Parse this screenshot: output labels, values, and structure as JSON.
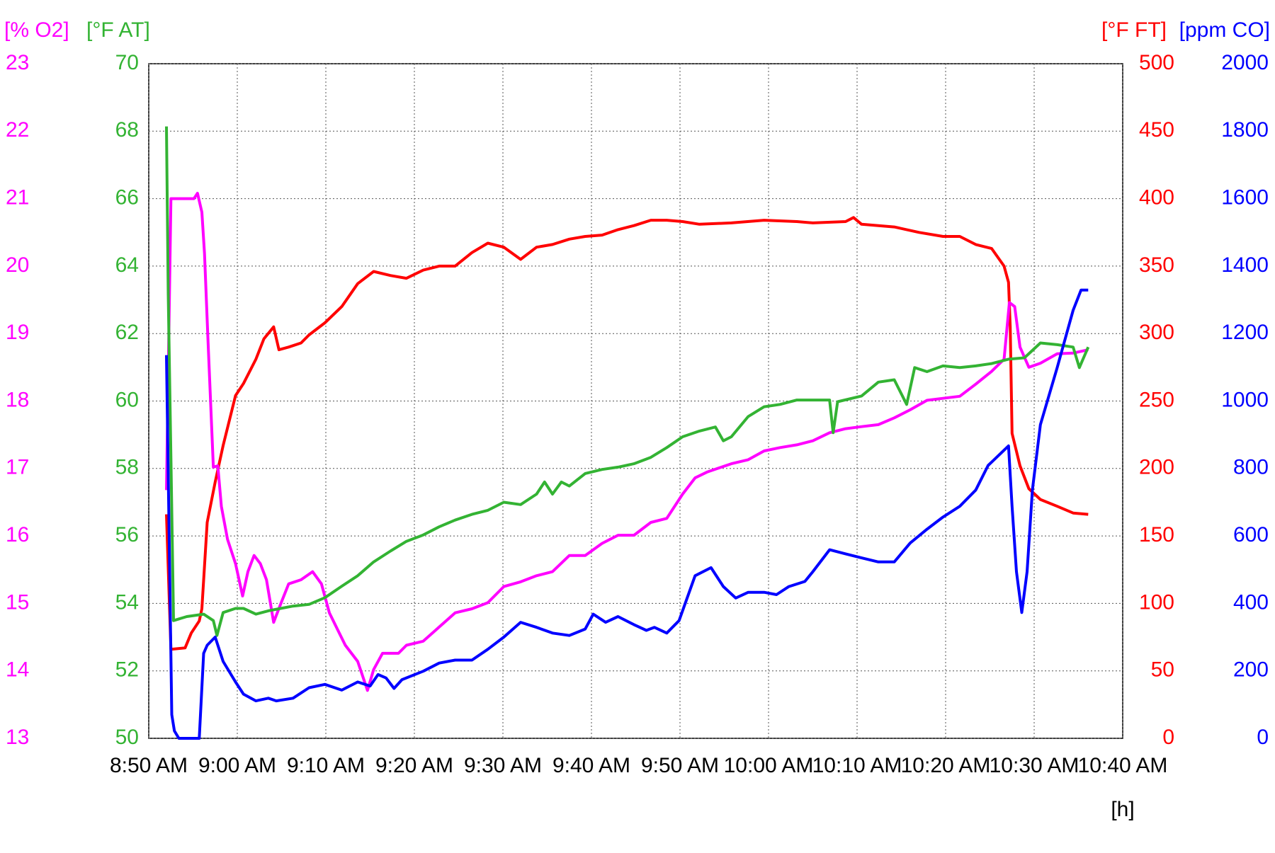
{
  "chart_data": {
    "type": "line",
    "x_label": "[h]",
    "xlim": [
      530,
      640
    ],
    "xticks": [
      {
        "value": 530,
        "label": "8:50 AM"
      },
      {
        "value": 540,
        "label": "9:00 AM"
      },
      {
        "value": 550,
        "label": "9:10 AM"
      },
      {
        "value": 560,
        "label": "9:20 AM"
      },
      {
        "value": 570,
        "label": "9:30 AM"
      },
      {
        "value": 580,
        "label": "9:40 AM"
      },
      {
        "value": 590,
        "label": "9:50 AM"
      },
      {
        "value": 600,
        "label": "10:00 AM"
      },
      {
        "value": 610,
        "label": "10:10 AM"
      },
      {
        "value": 620,
        "label": "10:20 AM"
      },
      {
        "value": 630,
        "label": "10:30 AM"
      },
      {
        "value": 640,
        "label": "10:40 AM"
      }
    ],
    "grid": true,
    "y_axes": [
      {
        "label": "[% O2]",
        "color": "#ff00ff",
        "side": "left",
        "ylim": [
          13,
          23
        ],
        "yticks": [
          13,
          14,
          15,
          16,
          17,
          18,
          19,
          20,
          21,
          22,
          23
        ]
      },
      {
        "label": "[°F AT]",
        "color": "#33b333",
        "side": "left",
        "ylim": [
          50,
          70
        ],
        "yticks": [
          50,
          52,
          54,
          56,
          58,
          60,
          62,
          64,
          66,
          68,
          70
        ]
      },
      {
        "label": "[°F FT]",
        "color": "#ff0000",
        "side": "right",
        "ylim": [
          0,
          500
        ],
        "yticks": [
          0,
          50,
          100,
          150,
          200,
          250,
          300,
          350,
          400,
          450,
          500
        ]
      },
      {
        "label": "[ppm CO]",
        "color": "#0000ff",
        "side": "right",
        "ylim": [
          0,
          2000
        ],
        "yticks": [
          0,
          200,
          400,
          600,
          800,
          1000,
          1200,
          1400,
          1600,
          1800,
          2000
        ]
      }
    ],
    "series": [
      {
        "axis": 2,
        "color": "#ff0000",
        "x": [
          532.0,
          532.5,
          534.1,
          534.8,
          535.7,
          536.0,
          536.6,
          537.5,
          538.4,
          539.8,
          540.7,
          542.1,
          543.0,
          544.1,
          544.7,
          545.8,
          547.2,
          548.1,
          549.9,
          551.8,
          553.6,
          555.4,
          557.3,
          559.1,
          561.0,
          562.8,
          564.6,
          566.5,
          568.3,
          570.1,
          572.0,
          573.8,
          575.6,
          577.5,
          579.3,
          581.2,
          583.0,
          584.8,
          586.7,
          588.5,
          590.3,
          592.2,
          595.8,
          599.5,
          603.2,
          605.0,
          608.7,
          609.6,
          610.5,
          614.2,
          617.0,
          619.7,
          621.6,
          623.4,
          625.2,
          626.6,
          627.1,
          627.3,
          627.5,
          628.4,
          629.4,
          630.7,
          632.6,
          634.4,
          636.1
        ],
        "values": [
          166,
          66,
          67,
          78,
          87,
          96,
          160,
          190,
          217,
          254,
          263,
          281,
          296,
          305,
          288,
          290,
          293,
          299,
          308,
          320,
          337,
          346,
          343,
          341,
          347,
          350,
          350,
          360,
          367,
          364,
          355,
          364,
          366,
          370,
          372,
          373,
          377,
          380,
          384,
          384,
          383,
          381,
          382,
          384,
          383,
          382,
          383,
          386,
          381,
          379,
          375,
          372,
          372,
          366,
          363,
          350,
          338,
          305,
          226,
          202,
          185,
          177,
          172,
          167,
          166
        ]
      },
      {
        "axis": 0,
        "color": "#ff00ff",
        "x": [
          532.0,
          532.5,
          535.1,
          535.5,
          536.0,
          536.3,
          536.7,
          537.3,
          537.8,
          538.2,
          538.9,
          539.8,
          540.6,
          541.2,
          541.9,
          542.6,
          543.3,
          544.1,
          544.9,
          545.8,
          547.2,
          548.5,
          549.5,
          550.4,
          551.3,
          552.2,
          553.6,
          554.7,
          555.4,
          556.4,
          558.2,
          559.1,
          561.0,
          562.8,
          564.6,
          566.5,
          568.3,
          570.1,
          572.0,
          573.8,
          575.6,
          577.5,
          579.3,
          581.2,
          583.0,
          584.8,
          586.7,
          588.5,
          590.3,
          591.7,
          593.1,
          595.8,
          597.7,
          599.5,
          601.3,
          603.2,
          605.0,
          606.9,
          608.7,
          610.5,
          612.4,
          614.2,
          616.0,
          617.9,
          619.7,
          621.6,
          623.4,
          625.2,
          626.6,
          627.2,
          627.8,
          628.4,
          629.4,
          630.7,
          632.6,
          634.4,
          636.1
        ],
        "values": [
          16.68,
          21.0,
          21.0,
          21.08,
          20.8,
          20.19,
          18.86,
          17.02,
          17.04,
          16.44,
          15.95,
          15.59,
          15.11,
          15.47,
          15.71,
          15.59,
          15.35,
          14.72,
          14.99,
          15.29,
          15.35,
          15.47,
          15.29,
          14.86,
          14.62,
          14.38,
          14.14,
          13.71,
          14.02,
          14.26,
          14.26,
          14.38,
          14.44,
          14.65,
          14.86,
          14.92,
          15.01,
          15.25,
          15.32,
          15.41,
          15.47,
          15.71,
          15.71,
          15.89,
          16.01,
          16.01,
          16.2,
          16.26,
          16.62,
          16.86,
          16.95,
          17.07,
          17.13,
          17.26,
          17.31,
          17.35,
          17.41,
          17.53,
          17.59,
          17.62,
          17.65,
          17.75,
          17.87,
          18.01,
          18.04,
          18.07,
          18.25,
          18.44,
          18.62,
          19.46,
          19.4,
          18.8,
          18.5,
          18.56,
          18.7,
          18.71,
          18.76
        ]
      },
      {
        "axis": 1,
        "color": "#33b333",
        "x": [
          532.0,
          532.2,
          532.5,
          532.8,
          534.3,
          536.2,
          537.3,
          537.7,
          538.4,
          539.8,
          540.7,
          542.1,
          543.5,
          544.9,
          546.3,
          548.1,
          549.9,
          551.8,
          553.6,
          555.4,
          557.3,
          559.1,
          561.0,
          562.8,
          564.6,
          566.5,
          568.3,
          570.1,
          572.0,
          573.8,
          574.7,
          575.6,
          576.6,
          577.5,
          579.3,
          581.2,
          583.0,
          584.8,
          586.7,
          588.5,
          590.3,
          592.2,
          594.0,
          594.9,
          595.8,
          597.7,
          599.5,
          601.3,
          603.2,
          605.0,
          606.9,
          607.3,
          607.8,
          610.5,
          612.4,
          614.2,
          615.6,
          616.5,
          617.9,
          619.7,
          621.6,
          623.4,
          625.2,
          627.1,
          628.9,
          630.7,
          632.6,
          634.4,
          635.1,
          636.1
        ],
        "values": [
          68.14,
          63.17,
          58.33,
          53.49,
          53.61,
          53.68,
          53.49,
          53.05,
          53.73,
          53.85,
          53.85,
          53.68,
          53.78,
          53.85,
          53.92,
          53.97,
          54.17,
          54.51,
          54.82,
          55.23,
          55.55,
          55.84,
          56.03,
          56.27,
          56.47,
          56.64,
          56.76,
          57.0,
          56.93,
          57.24,
          57.6,
          57.24,
          57.6,
          57.48,
          57.85,
          57.97,
          58.04,
          58.14,
          58.33,
          58.62,
          58.94,
          59.11,
          59.23,
          58.82,
          58.94,
          59.54,
          59.83,
          59.9,
          60.03,
          60.03,
          60.03,
          59.06,
          59.98,
          60.15,
          60.56,
          60.63,
          59.9,
          60.99,
          60.87,
          61.04,
          60.99,
          61.04,
          61.11,
          61.24,
          61.28,
          61.72,
          61.67,
          61.6,
          60.99,
          61.6
        ]
      },
      {
        "axis": 3,
        "color": "#0000ff",
        "x": [
          532.0,
          532.3,
          532.6,
          532.9,
          533.4,
          535.7,
          536.2,
          536.6,
          537.5,
          538.4,
          539.8,
          540.7,
          542.1,
          543.5,
          544.4,
          546.3,
          548.1,
          549.9,
          551.8,
          553.6,
          555.0,
          555.9,
          556.8,
          557.7,
          558.6,
          561.0,
          562.8,
          564.6,
          566.5,
          568.3,
          570.1,
          572.0,
          573.8,
          575.6,
          577.5,
          579.3,
          580.2,
          581.6,
          583.0,
          584.8,
          586.2,
          587.1,
          588.5,
          589.9,
          591.7,
          593.5,
          594.9,
          596.3,
          597.7,
          599.5,
          600.9,
          602.3,
          604.1,
          605.0,
          606.9,
          608.7,
          610.5,
          612.4,
          614.2,
          616.0,
          617.9,
          619.7,
          621.6,
          623.4,
          624.8,
          627.1,
          627.5,
          628.0,
          628.6,
          629.2,
          629.8,
          630.7,
          632.6,
          634.4,
          635.3,
          636.1
        ],
        "values": [
          1136,
          615,
          70,
          22,
          0,
          0,
          252,
          276,
          300,
          228,
          167,
          131,
          111,
          119,
          111,
          119,
          150,
          160,
          143,
          167,
          155,
          189,
          179,
          148,
          174,
          199,
          223,
          232,
          232,
          264,
          300,
          344,
          329,
          312,
          305,
          324,
          368,
          344,
          361,
          337,
          320,
          329,
          312,
          349,
          482,
          506,
          450,
          416,
          433,
          433,
          426,
          450,
          465,
          494,
          559,
          547,
          535,
          523,
          523,
          579,
          620,
          656,
          688,
          736,
          809,
          867,
          688,
          494,
          373,
          494,
          736,
          930,
          1099,
          1269,
          1329,
          1329
        ]
      }
    ]
  }
}
